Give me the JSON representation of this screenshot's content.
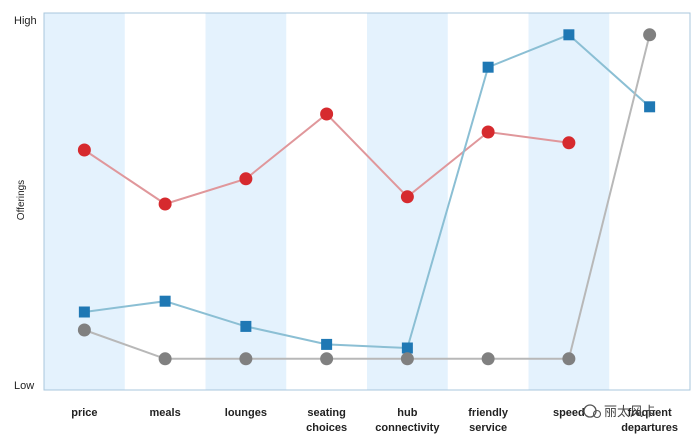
{
  "chart_data": {
    "type": "line",
    "title": "",
    "xlabel": "",
    "ylabel": "Offerings",
    "y_tick_labels": {
      "high": "High",
      "low": "Low"
    },
    "ylim": [
      0,
      100
    ],
    "categories": [
      [
        "price"
      ],
      [
        "meals"
      ],
      [
        "lounges"
      ],
      [
        "seating",
        "choices"
      ],
      [
        "hub",
        "connectivity"
      ],
      [
        "friendly",
        "service"
      ],
      [
        "speed"
      ],
      [
        "frequent",
        "departures"
      ]
    ],
    "series": [
      {
        "marker": "circle",
        "line_color": "#e0979b",
        "marker_color": "#d62a2e",
        "values": [
          65,
          50,
          57,
          75,
          52,
          70,
          67,
          null
        ]
      },
      {
        "marker": "square",
        "line_color": "#8bbfd4",
        "marker_color": "#1f78b4",
        "values": [
          20,
          23,
          16,
          11,
          10,
          88,
          97,
          77
        ]
      },
      {
        "marker": "circle",
        "line_color": "#b8b8b8",
        "marker_color": "#808080",
        "values": [
          15,
          7,
          7,
          7,
          7,
          7,
          7,
          97
        ]
      }
    ],
    "band_color": "#e4f2fd",
    "grid": false,
    "legend": "none"
  },
  "watermark": {
    "text": "丽太风卡"
  }
}
